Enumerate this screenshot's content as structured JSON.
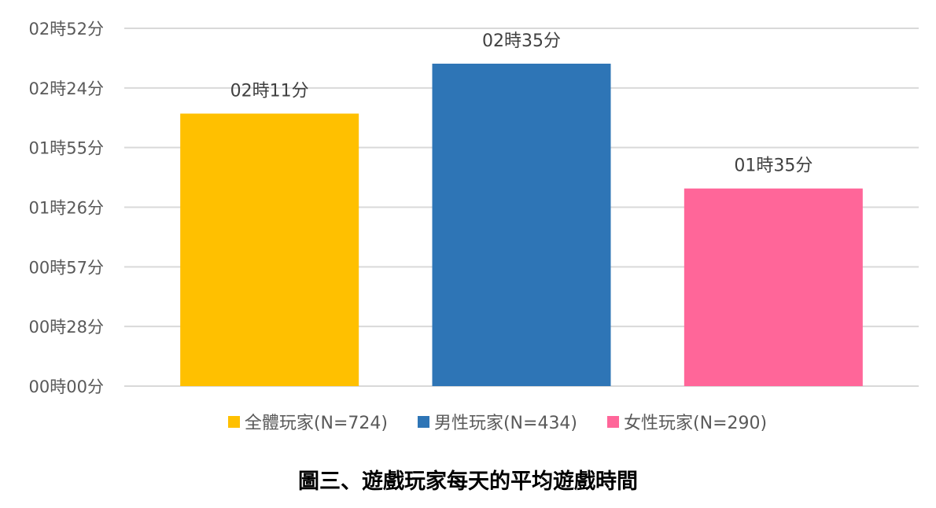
{
  "chart_data": {
    "type": "bar",
    "title": "圖三、遊戲玩家每天的平均遊戲時間",
    "categories": [
      "全體玩家(N=724)",
      "男性玩家(N=434)",
      "女性玩家(N=290)"
    ],
    "values_minutes": [
      131,
      155,
      95
    ],
    "data_labels": [
      "02時11分",
      "02時35分",
      "01時35分"
    ],
    "colors": [
      "#FFC000",
      "#2E75B6",
      "#FF6699"
    ],
    "yticks": [
      "00時00分",
      "00時28分",
      "00時57分",
      "01時26分",
      "01時55分",
      "02時24分",
      "02時52分"
    ],
    "ylim": [
      0,
      172
    ],
    "ylabel": "",
    "xlabel": "",
    "grid": true,
    "legend_position": "bottom"
  }
}
